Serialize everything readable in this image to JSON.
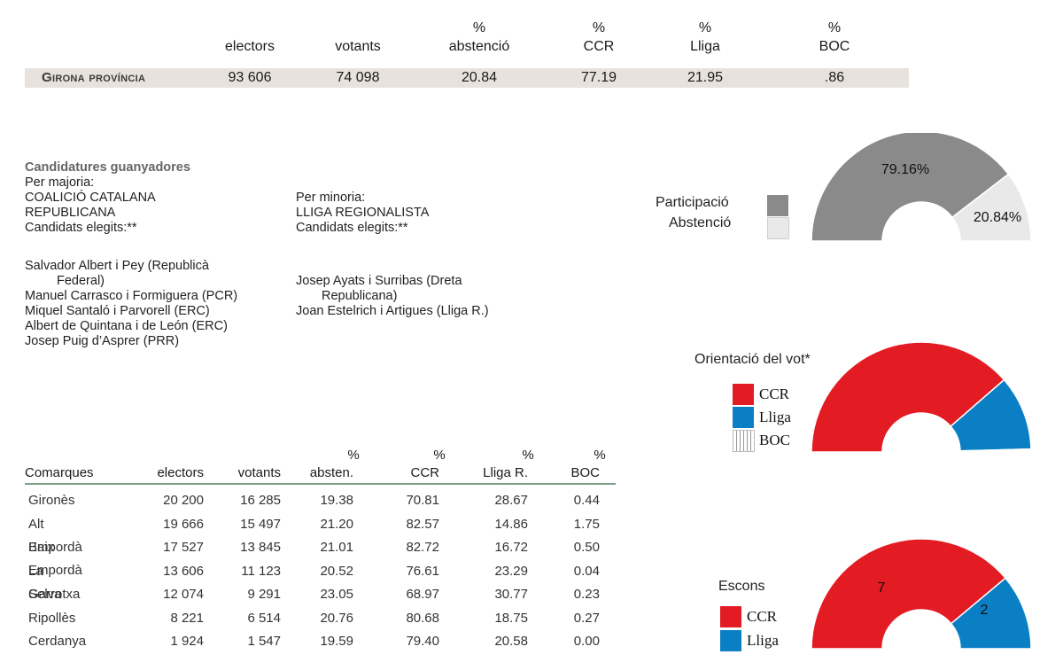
{
  "summary": {
    "headers": [
      {
        "top": "",
        "bottom": "electors"
      },
      {
        "top": "",
        "bottom": "votants"
      },
      {
        "top": "%",
        "bottom": "abstenció"
      },
      {
        "top": "%",
        "bottom": "CCR"
      },
      {
        "top": "%",
        "bottom": "Lliga"
      },
      {
        "top": "%",
        "bottom": "BOC"
      }
    ],
    "title": "Girona província",
    "values": [
      "93 606",
      "74 098",
      "20.84",
      "77.19",
      "21.95",
      ".86"
    ]
  },
  "candidatures": {
    "heading": "Candidatures guanyadores",
    "majority": {
      "label": "Per majoria:",
      "party_line1": "COALICIÓ CATALANA",
      "party_line2": "REPUBLICANA",
      "elected_label": "Candidats elegits:**",
      "candidates": [
        "Salvador Albert i Pey (Republicà",
        "Federal)",
        "Manuel Carrasco i Formiguera (PCR)",
        "Miquel Santaló i Parvorell (ERC)",
        "Albert de Quintana i de León (ERC)",
        "Josep Puig d’Asprer (PRR)"
      ]
    },
    "minority": {
      "label": "Per minoria:",
      "party_line1": "LLIGA REGIONALISTA",
      "elected_label": "Candidats elegits:**",
      "candidates": [
        "Josep Ayats i Surribas (Dreta",
        "Republicana)",
        "Joan Estelrich i Artigues (Lliga R.)"
      ]
    }
  },
  "table": {
    "headers_top": [
      "",
      "",
      "",
      "%",
      "%",
      "%",
      "%"
    ],
    "headers": [
      "Comarques",
      "electors",
      "votants",
      "absten.",
      "CCR",
      "Lliga R.",
      "BOC"
    ],
    "rows": [
      [
        "Gironès",
        "20 200",
        "16 285",
        "19.38",
        "70.81",
        "28.67",
        "0.44"
      ],
      [
        "Alt Empordà",
        "19 666",
        "15 497",
        "21.20",
        "82.57",
        "14.86",
        "1.75"
      ],
      [
        "Baix Empordà",
        "17 527",
        "13 845",
        "21.01",
        "82.72",
        "16.72",
        "0.50"
      ],
      [
        "La Selva",
        "13 606",
        "11 123",
        "20.52",
        "76.61",
        "23.29",
        "0.04"
      ],
      [
        "Garrotxa",
        "12 074",
        "9 291",
        "23.05",
        "68.97",
        "30.77",
        "0.23"
      ],
      [
        "Ripollès",
        "8 221",
        "6 514",
        "20.76",
        "80.68",
        "18.75",
        "0.27"
      ],
      [
        "Cerdanya",
        "1 924",
        "1 547",
        "19.59",
        "79.40",
        "20.58",
        "0.00"
      ]
    ]
  },
  "chart_data": [
    {
      "type": "pie",
      "subtype": "half-donut",
      "categories": [
        "Participació",
        "Abstenció"
      ],
      "values": [
        79.16,
        20.84
      ],
      "labels": [
        "79.16%",
        "20.84%"
      ],
      "colors": [
        "#8a8a8a",
        "#e9e9e9"
      ]
    },
    {
      "type": "pie",
      "subtype": "half-donut",
      "title": "Orientació del vot*",
      "categories": [
        "CCR",
        "Lliga",
        "BOC"
      ],
      "values": [
        77.19,
        21.95,
        0.86
      ],
      "colors": [
        "#e31b23",
        "#0a7fc4",
        "#ffffff"
      ]
    },
    {
      "type": "pie",
      "subtype": "half-donut",
      "title": "Escons",
      "categories": [
        "CCR",
        "Lliga"
      ],
      "values": [
        7,
        2
      ],
      "labels": [
        "7",
        "2"
      ],
      "colors": [
        "#e31b23",
        "#0a7fc4"
      ]
    }
  ]
}
